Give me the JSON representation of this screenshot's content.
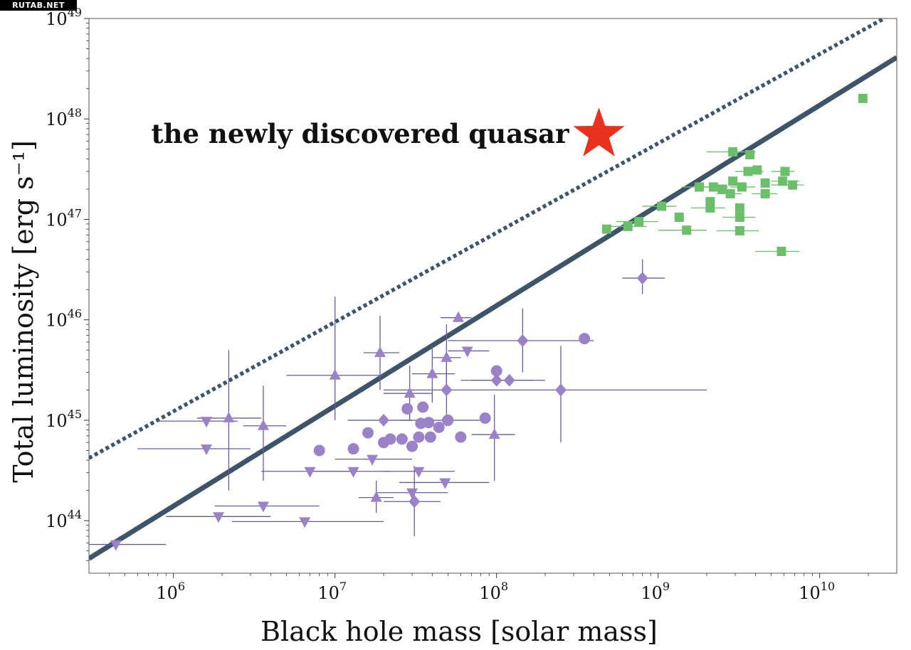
{
  "watermark": "RUTAB.NET",
  "chart_data": {
    "type": "scatter",
    "title": "",
    "xlabel": "Black hole mass [solar mass]",
    "ylabel": "Total luminosity [erg s⁻¹]",
    "xscale": "log",
    "yscale": "log",
    "xlim": [
      300000,
      30000000000
    ],
    "ylim": [
      3e+43,
      1e+49
    ],
    "grid": false,
    "x_ticks": [
      {
        "value": 1000000,
        "base": "10",
        "exp": "6"
      },
      {
        "value": 10000000,
        "base": "10",
        "exp": "7"
      },
      {
        "value": 100000000,
        "base": "10",
        "exp": "8"
      },
      {
        "value": 1000000000,
        "base": "10",
        "exp": "9"
      },
      {
        "value": 10000000000,
        "base": "10",
        "exp": "10"
      }
    ],
    "y_ticks": [
      {
        "value": 1e+44,
        "base": "10",
        "exp": "44"
      },
      {
        "value": 1e+45,
        "base": "10",
        "exp": "45"
      },
      {
        "value": 1e+46,
        "base": "10",
        "exp": "46"
      },
      {
        "value": 1e+47,
        "base": "10",
        "exp": "47"
      },
      {
        "value": 1e+48,
        "base": "10",
        "exp": "48"
      },
      {
        "value": 1e+49,
        "base": "10",
        "exp": "49"
      }
    ],
    "lines": [
      {
        "style": "solid",
        "color": "#3e5468",
        "points": [
          [
            300000,
            4.2e+43
          ],
          [
            30000000000,
            4.1e+48
          ]
        ]
      },
      {
        "style": "dotted",
        "color": "#3e5468",
        "points": [
          [
            300000,
            4.2e+44
          ],
          [
            25000000000,
            1e+49
          ]
        ]
      }
    ],
    "annotation": {
      "text": "the newly discovered quasar",
      "color": "#e8321e",
      "x": 430000000,
      "y": 7e+47
    },
    "star": {
      "x": 430000000,
      "y": 7e+47,
      "color": "#e8321e"
    },
    "series": [
      {
        "marker": "square",
        "color": "#6bbf6b",
        "ecolor": "#6bbf6b",
        "points": [
          [
            18500000000,
            1.6e+48,
            null,
            null
          ],
          [
            2900000000,
            4.7e+47,
            2000000000,
            4000000000
          ],
          [
            3700000000,
            4.4e+47,
            null,
            null
          ],
          [
            3600000000,
            3e+47,
            3000000000,
            4500000000
          ],
          [
            4100000000,
            3.1e+47,
            null,
            null
          ],
          [
            6100000000,
            3e+47,
            5000000000,
            7000000000
          ],
          [
            5900000000,
            2.4e+47,
            5000000000,
            7500000000
          ],
          [
            2900000000,
            2.4e+47,
            null,
            null
          ],
          [
            3300000000,
            2.1e+47,
            2800000000,
            4000000000
          ],
          [
            4600000000,
            2.3e+47,
            null,
            null
          ],
          [
            6800000000,
            2.2e+47,
            5000000000,
            8000000000
          ],
          [
            1800000000,
            2.1e+47,
            1400000000,
            2300000000
          ],
          [
            2200000000,
            2.1e+47,
            1800000000,
            2700000000
          ],
          [
            2500000000,
            2e+47,
            null,
            null
          ],
          [
            2800000000,
            1.8e+47,
            2300000000,
            3300000000
          ],
          [
            4600000000,
            1.8e+47,
            3800000000,
            5500000000
          ],
          [
            2100000000,
            1.5e+47,
            null,
            null
          ],
          [
            2100000000,
            1.3e+47,
            1600000000,
            2600000000
          ],
          [
            3200000000,
            1.3e+47,
            null,
            null
          ],
          [
            1050000000,
            1.35e+47,
            800000000,
            1300000000
          ],
          [
            1350000000,
            1.05e+47,
            null,
            null
          ],
          [
            3200000000,
            1.05e+47,
            2500000000,
            4000000000
          ],
          [
            760000000,
            9.5e+46,
            550000000,
            1000000000
          ],
          [
            650000000,
            8.5e+46,
            450000000,
            850000000
          ],
          [
            480000000,
            8e+46,
            null,
            null
          ],
          [
            1500000000,
            7.8e+46,
            1000000000,
            2000000000
          ],
          [
            3200000000,
            7.7e+46,
            2300000000,
            4200000000
          ],
          [
            5800000000,
            4.8e+46,
            4000000000,
            7500000000
          ]
        ]
      },
      {
        "marker": "circle",
        "color": "#9a82c8",
        "ecolor": "#6a5a9a",
        "points": [
          [
            350000000,
            6.5e+45,
            null,
            null
          ],
          [
            100000000,
            3.1e+45,
            null,
            null
          ],
          [
            35000000,
            1.35e+45,
            null,
            null
          ],
          [
            28000000,
            1.3e+45,
            null,
            null
          ],
          [
            85000000,
            1.05e+45,
            null,
            null
          ],
          [
            50000000,
            1e+45,
            null,
            null
          ],
          [
            38000000,
            9.5e+44,
            null,
            null
          ],
          [
            34000000,
            9.3e+44,
            null,
            null
          ],
          [
            44000000,
            8.5e+44,
            null,
            null
          ],
          [
            16000000,
            7.5e+44,
            null,
            null
          ],
          [
            22000000,
            6.5e+44,
            null,
            null
          ],
          [
            26000000,
            6.5e+44,
            null,
            null
          ],
          [
            33000000,
            6.8e+44,
            null,
            null
          ],
          [
            39000000,
            6.8e+44,
            null,
            null
          ],
          [
            60000000,
            6.8e+44,
            null,
            null
          ],
          [
            20000000,
            6e+44,
            null,
            null
          ],
          [
            30000000,
            5.5e+44,
            null,
            null
          ],
          [
            13000000,
            5.2e+44,
            null,
            null
          ],
          [
            8000000,
            5e+44,
            null,
            null
          ]
        ]
      },
      {
        "marker": "diamond",
        "color": "#9a82c8",
        "ecolor": "#6a5a9a",
        "points": [
          [
            800000000,
            2.6e+46,
            600000000,
            1100000000,
            1.8e+46,
            4e+46
          ],
          [
            145000000,
            6.2e+45,
            50000000,
            400000000,
            3e+45,
            1.3e+46
          ],
          [
            120000000,
            2.5e+45,
            70000000,
            200000000,
            null,
            null
          ],
          [
            100000000,
            2.5e+45,
            60000000,
            170000000,
            null,
            null
          ],
          [
            250000000,
            2e+45,
            100000000,
            2000000000,
            6e+44,
            5.5e+45
          ],
          [
            49000000,
            2e+45,
            20000000,
            100000000,
            1e+45,
            4.5e+45
          ],
          [
            49000000,
            1e+45,
            25000000,
            90000000,
            null,
            null
          ],
          [
            20000000,
            1e+45,
            12000000,
            30000000,
            null,
            null
          ],
          [
            31000000,
            1.55e+44,
            20000000,
            45000000,
            7e+43,
            3.5e+44
          ]
        ]
      },
      {
        "marker": "triangle-up",
        "color": "#9a82c8",
        "ecolor": "#6a5a9a",
        "points": [
          [
            58000000,
            1.05e+46,
            45000000,
            70000000,
            null,
            null
          ],
          [
            19000000,
            4.7e+45,
            15000000,
            25000000,
            2e+45,
            1.1e+46
          ],
          [
            10000000,
            2.8e+45,
            5000000,
            20000000,
            1e+45,
            1.7e+46
          ],
          [
            49000000,
            4.2e+45,
            40000000,
            60000000,
            2e+45,
            9e+45
          ],
          [
            40000000,
            2.9e+45,
            30000000,
            55000000,
            1.5e+45,
            5.5e+45
          ],
          [
            29000000,
            1.85e+45,
            20000000,
            40000000,
            1e+45,
            3.5e+45
          ],
          [
            2200000,
            1.05e+45,
            1400000,
            3500000,
            2e+44,
            5e+45
          ],
          [
            3600000,
            8.8e+44,
            2700000,
            5000000,
            2.5e+44,
            2.2e+45
          ],
          [
            97000000,
            7.2e+44,
            70000000,
            130000000,
            2.5e+44,
            1.8e+45
          ],
          [
            18000000,
            1.7e+44,
            14000000,
            23000000,
            1.2e+44,
            2.5e+44
          ]
        ]
      },
      {
        "marker": "triangle-down",
        "color": "#9a82c8",
        "ecolor": "#6a5a9a",
        "points": [
          [
            66000000,
            4.9e+45,
            50000000,
            90000000,
            null,
            null
          ],
          [
            1600000,
            9.8e+44,
            800000,
            2500000,
            null,
            null
          ],
          [
            1600000,
            5.2e+44,
            600000,
            3000000,
            null,
            null
          ],
          [
            7000000,
            3.1e+44,
            3500000,
            14000000,
            null,
            null
          ],
          [
            13000000,
            3.1e+44,
            7000000,
            22000000,
            null,
            null
          ],
          [
            17000000,
            4.1e+44,
            10000000,
            30000000,
            null,
            null
          ],
          [
            33000000,
            3.1e+44,
            20000000,
            55000000,
            null,
            null
          ],
          [
            48000000,
            2.4e+44,
            25000000,
            90000000,
            null,
            null
          ],
          [
            30000000,
            1.9e+44,
            18000000,
            50000000,
            null,
            null
          ],
          [
            1900000,
            1.1e+44,
            900000,
            4000000,
            null,
            null
          ],
          [
            3600000,
            1.4e+44,
            1800000,
            8000000,
            null,
            null
          ],
          [
            6500000,
            9.8e+43,
            2300000,
            20000000,
            null,
            null
          ],
          [
            440000,
            5.8e+43,
            300000,
            900000,
            null,
            null
          ]
        ]
      }
    ]
  }
}
